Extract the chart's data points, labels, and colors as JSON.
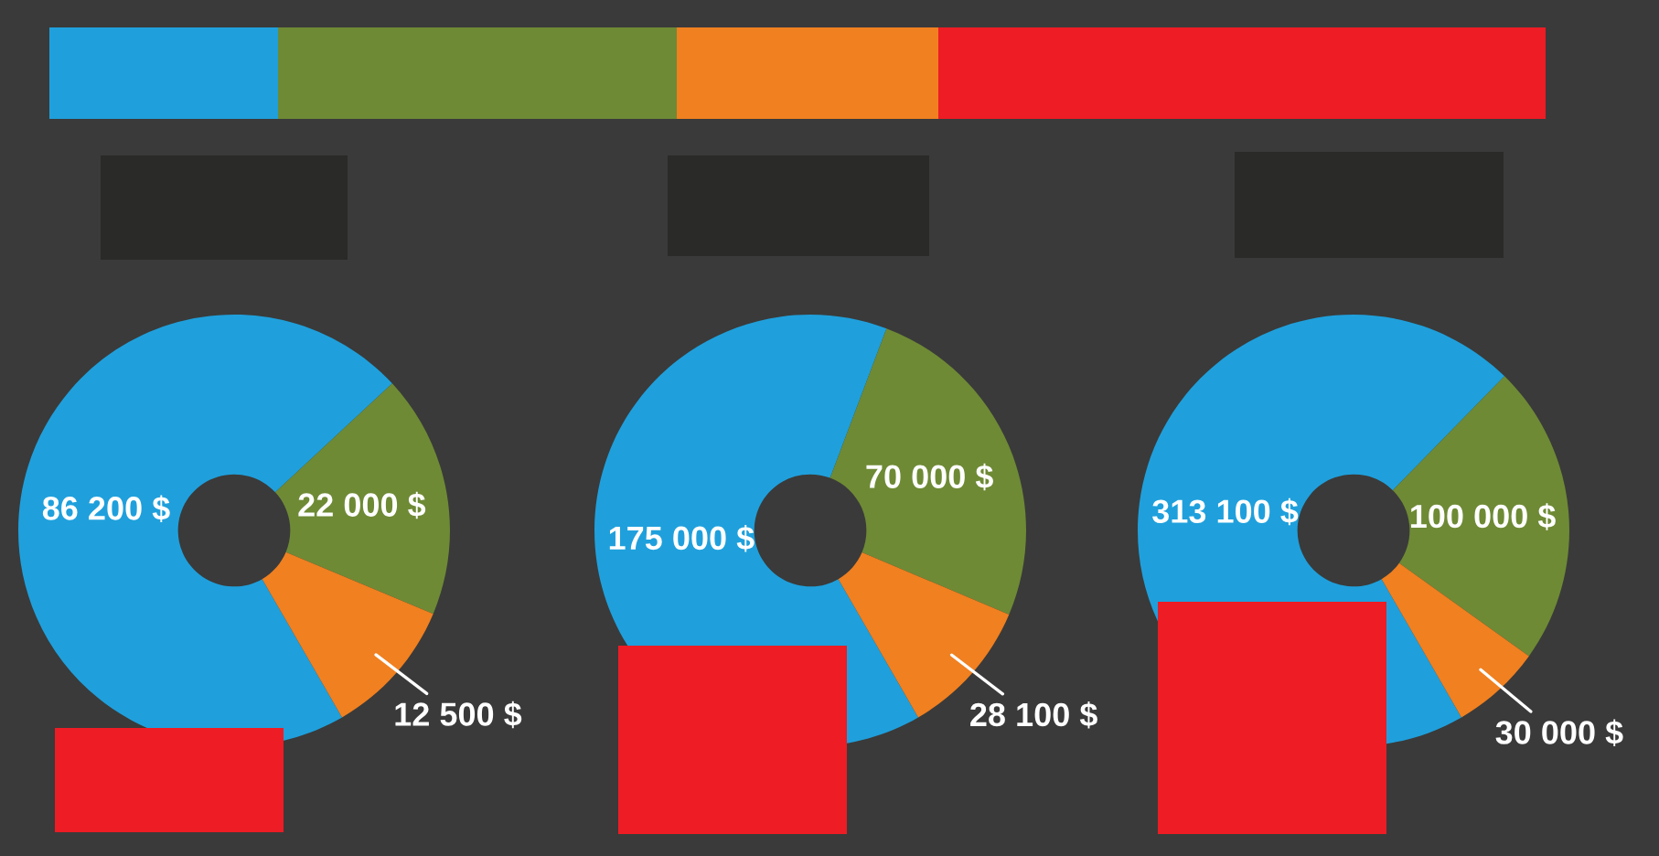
{
  "chart_data": [
    {
      "type": "donut",
      "categories": [
        null,
        null,
        null
      ],
      "values": [
        86200,
        22000,
        12500
      ],
      "colors": [
        "#1fa0dc",
        "#6e8a35",
        "#f08020"
      ],
      "value_labels": [
        "86 200 $",
        "22 000 $",
        "12 500 $"
      ]
    },
    {
      "type": "donut",
      "categories": [
        null,
        null,
        null
      ],
      "values": [
        175000,
        70000,
        28100
      ],
      "colors": [
        "#1fa0dc",
        "#6e8a35",
        "#f08020"
      ],
      "value_labels": [
        "175 000 $",
        "70 000 $",
        "28 100 $"
      ]
    },
    {
      "type": "donut",
      "categories": [
        null,
        null,
        null
      ],
      "values": [
        313100,
        100000,
        30000
      ],
      "colors": [
        "#1fa0dc",
        "#6e8a35",
        "#f08020"
      ],
      "value_labels": [
        "313 100 $",
        "100 000 $",
        "30 000 $"
      ]
    }
  ]
}
